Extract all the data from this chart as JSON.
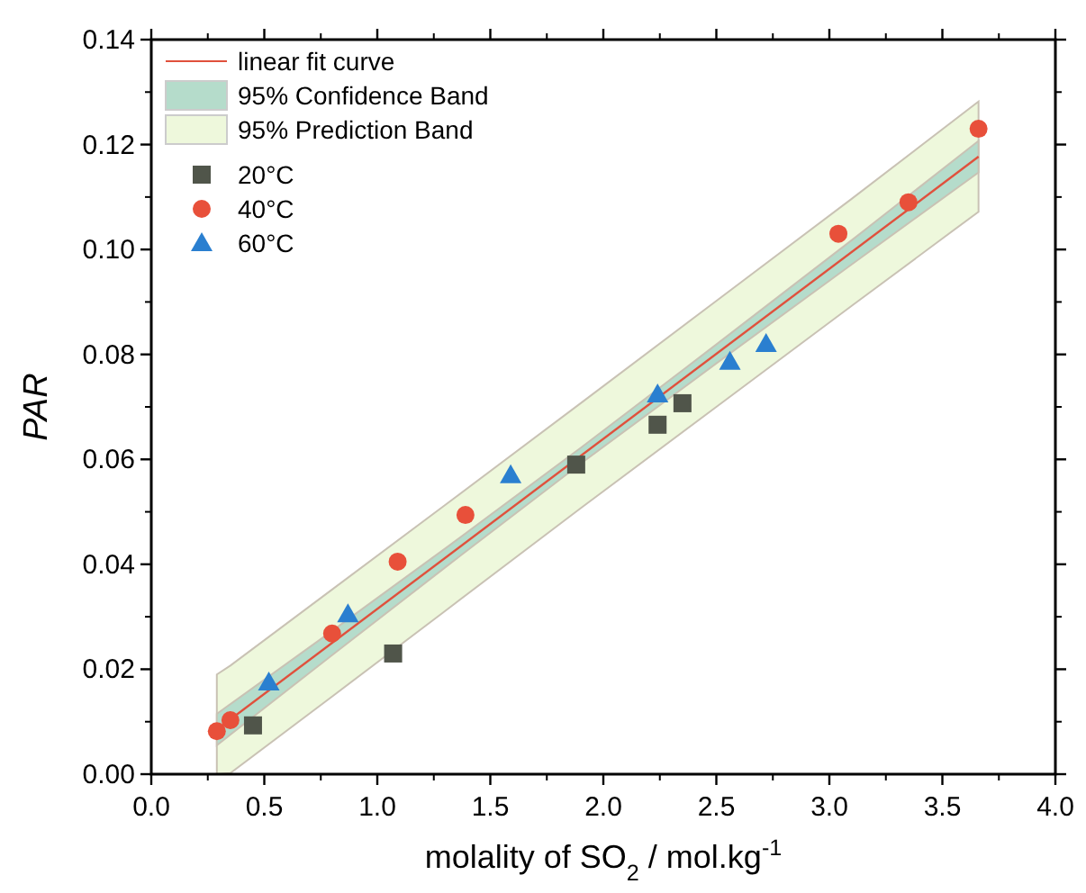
{
  "chart_data": {
    "type": "scatter",
    "xlabel": "molality of SO$_{2}$ / mol.kg$^{-1}$",
    "ylabel": "PAR",
    "xlim": [
      0,
      4
    ],
    "ylim": [
      0,
      0.14
    ],
    "xticks": [
      {
        "value": 0,
        "label": "0.0"
      },
      0.5,
      {
        "value": 1,
        "label": "1.0"
      },
      1.5,
      {
        "value": 2,
        "label": "2.0"
      },
      2.5,
      {
        "value": 3,
        "label": "3.0"
      },
      3.5,
      {
        "value": 4,
        "label": "4.0"
      }
    ],
    "yticks": [
      {
        "value": 0,
        "label": "0.00"
      },
      0.02,
      0.04,
      0.06,
      0.08,
      {
        "value": 0.1,
        "label": "0.10"
      },
      0.12,
      0.14
    ],
    "grid": false,
    "legend": "top left",
    "series": [
      {
        "name": "linear fit curve",
        "type": "line",
        "color": "#e0503c",
        "line_style": "solid",
        "x": [
          0.29,
          3.66
        ],
        "values": [
          0.0085,
          0.1177
        ]
      },
      {
        "name": "95% Confidence Band",
        "type": "line",
        "color": "#b5dccb",
        "x": [
          0.29,
          0.8,
          1.3,
          1.9,
          2.5,
          3.1,
          3.66
        ],
        "values": [
          null,
          null,
          null,
          null,
          null,
          null,
          null
        ],
        "lower": [
          0.0055,
          0.0227,
          0.0394,
          0.0592,
          0.0783,
          0.0972,
          0.1147
        ],
        "upper": [
          0.0115,
          0.0273,
          0.043,
          0.0622,
          0.0819,
          0.1018,
          0.1207
        ]
      },
      {
        "name": "95% Prediction Band",
        "type": "line",
        "color": "#eef8dc",
        "x": [
          0.29,
          0.35,
          0.8,
          1.3,
          1.9,
          2.5,
          3.1,
          3.66
        ],
        "values": [
          null,
          null,
          null,
          null,
          null,
          null,
          null,
          null
        ],
        "lower": [
          0,
          0.0002,
          0.0148,
          0.0311,
          0.0507,
          0.07,
          0.0893,
          0.1072
        ],
        "upper": [
          0.019,
          0.0207,
          0.0352,
          0.0513,
          0.0707,
          0.0902,
          0.1097,
          0.1282
        ]
      },
      {
        "name": "20°C",
        "marker": "square",
        "color": "#50554a",
        "x": [
          0.45,
          1.07,
          1.88,
          2.24,
          2.35
        ],
        "values": [
          0.0093,
          0.023,
          0.059,
          0.0666,
          0.0707
        ]
      },
      {
        "name": "40°C",
        "marker": "circle",
        "color": "#e8503a",
        "x": [
          0.29,
          0.35,
          0.8,
          1.09,
          1.39,
          3.04,
          3.35,
          3.66
        ],
        "values": [
          0.0082,
          0.0103,
          0.0268,
          0.0405,
          0.0494,
          0.103,
          0.109,
          0.123
        ]
      },
      {
        "name": "60°C",
        "marker": "triangle",
        "color": "#2a7fd0",
        "x": [
          0.52,
          0.87,
          1.59,
          2.24,
          2.56,
          2.72
        ],
        "values": [
          0.0175,
          0.0305,
          0.057,
          0.0724,
          0.0786,
          0.082
        ]
      }
    ]
  }
}
